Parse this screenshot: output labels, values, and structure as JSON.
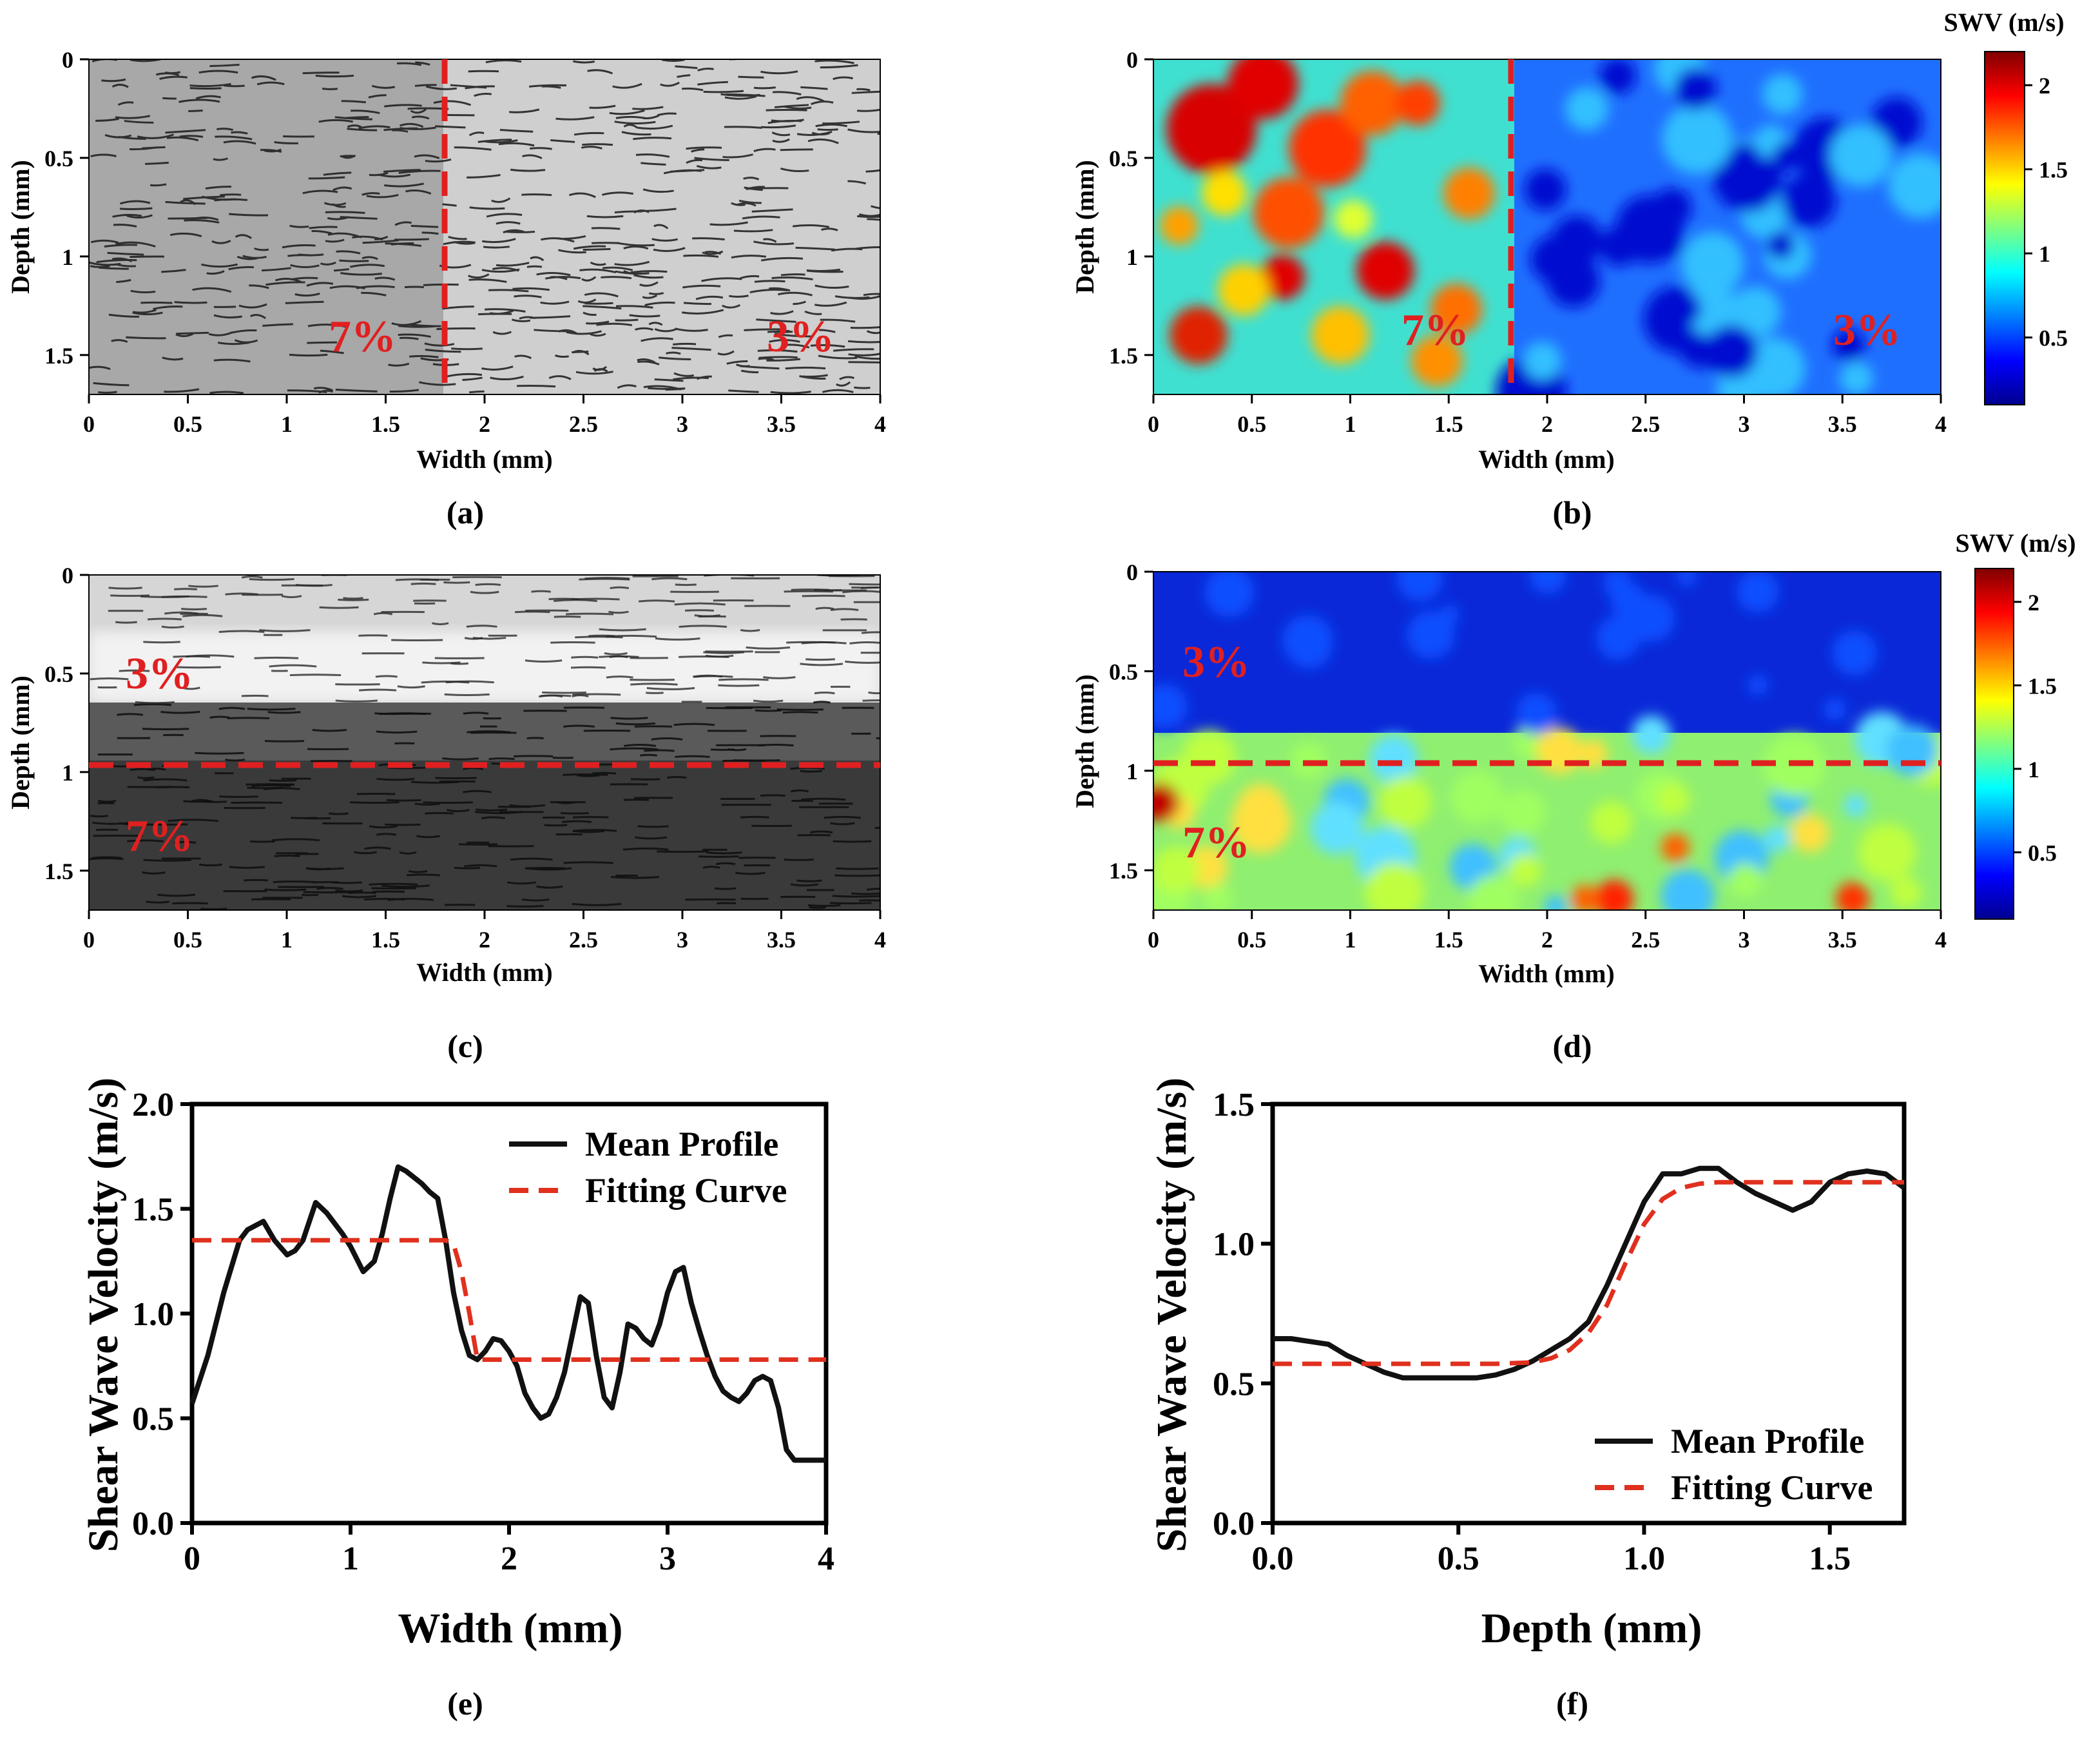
{
  "colors": {
    "dashed_red": "#e02020",
    "profile_black": "#111111",
    "fit_red": "#e0301e"
  },
  "panels": {
    "a": {
      "caption": "(a)",
      "xlabel": "Width (mm)",
      "ylabel": "Depth (mm)",
      "xticks": [
        "0",
        "0.5",
        "1",
        "1.5",
        "2",
        "2.5",
        "3",
        "3.5",
        "4"
      ],
      "yticks": [
        "0",
        "0.5",
        "1",
        "1.5"
      ],
      "xlim": [
        0,
        4
      ],
      "ylim": [
        0,
        1.7
      ],
      "labels": [
        "7%",
        "3%"
      ],
      "boundary_width_mm": 1.8
    },
    "b": {
      "caption": "(b)",
      "xlabel": "Width (mm)",
      "ylabel": "Depth (mm)",
      "xticks": [
        "0",
        "0.5",
        "1",
        "1.5",
        "2",
        "2.5",
        "3",
        "3.5",
        "4"
      ],
      "yticks": [
        "0",
        "0.5",
        "1",
        "1.5"
      ],
      "xlim": [
        0,
        4
      ],
      "ylim": [
        0,
        1.7
      ],
      "labels": [
        "7%",
        "3%"
      ],
      "boundary_width_mm": 1.8,
      "colorbar_title": "SWV (m/s)",
      "colorbar_ticks": [
        "2",
        "1.5",
        "1",
        "0.5"
      ],
      "colorbar_range": [
        0.1,
        2.2
      ]
    },
    "c": {
      "caption": "(c)",
      "xlabel": "Width (mm)",
      "ylabel": "Depth (mm)",
      "xticks": [
        "0",
        "0.5",
        "1",
        "1.5",
        "2",
        "2.5",
        "3",
        "3.5",
        "4"
      ],
      "yticks": [
        "0",
        "0.5",
        "1",
        "1.5"
      ],
      "xlim": [
        0,
        4
      ],
      "ylim": [
        0,
        1.7
      ],
      "labels": [
        "3%",
        "7%"
      ],
      "boundary_depth_mm": 0.95
    },
    "d": {
      "caption": "(d)",
      "xlabel": "Width (mm)",
      "ylabel": "Depth (mm)",
      "xticks": [
        "0",
        "0.5",
        "1",
        "1.5",
        "2",
        "2.5",
        "3",
        "3.5",
        "4"
      ],
      "yticks": [
        "0",
        "0.5",
        "1",
        "1.5"
      ],
      "xlim": [
        0,
        4
      ],
      "ylim": [
        0,
        1.7
      ],
      "labels": [
        "3%",
        "7%"
      ],
      "boundary_depth_mm": 0.95,
      "colorbar_title": "SWV (m/s)",
      "colorbar_ticks": [
        "2",
        "1.5",
        "1",
        "0.5"
      ],
      "colorbar_range": [
        0.1,
        2.2
      ]
    }
  },
  "chart_data": [
    {
      "type": "line",
      "caption": "(e)",
      "xlabel": "Width (mm)",
      "ylabel": "Shear Wave Velocity (m/s)",
      "xlim": [
        0,
        4
      ],
      "ylim": [
        0,
        2.0
      ],
      "xticks": [
        "0",
        "1",
        "2",
        "3",
        "4"
      ],
      "yticks": [
        "0.0",
        "0.5",
        "1.0",
        "1.5",
        "2.0"
      ],
      "series": [
        {
          "name": "Mean Profile",
          "style": "solid",
          "x": [
            0,
            0.1,
            0.2,
            0.3,
            0.35,
            0.45,
            0.52,
            0.6,
            0.65,
            0.7,
            0.78,
            0.85,
            0.95,
            1.0,
            1.08,
            1.15,
            1.2,
            1.25,
            1.3,
            1.35,
            1.4,
            1.45,
            1.5,
            1.55,
            1.6,
            1.65,
            1.7,
            1.75,
            1.8,
            1.85,
            1.9,
            1.95,
            2.0,
            2.05,
            2.1,
            2.15,
            2.2,
            2.25,
            2.3,
            2.35,
            2.4,
            2.45,
            2.5,
            2.55,
            2.6,
            2.65,
            2.7,
            2.75,
            2.8,
            2.85,
            2.9,
            2.95,
            3.0,
            3.05,
            3.1,
            3.15,
            3.2,
            3.25,
            3.3,
            3.35,
            3.4,
            3.45,
            3.5,
            3.55,
            3.6,
            3.65,
            3.7,
            3.75,
            3.8,
            3.85,
            3.9,
            3.95,
            4.0
          ],
          "y": [
            0.57,
            0.8,
            1.1,
            1.35,
            1.4,
            1.44,
            1.35,
            1.28,
            1.3,
            1.35,
            1.53,
            1.48,
            1.38,
            1.32,
            1.2,
            1.25,
            1.38,
            1.55,
            1.7,
            1.68,
            1.65,
            1.62,
            1.58,
            1.55,
            1.35,
            1.1,
            0.92,
            0.8,
            0.78,
            0.82,
            0.88,
            0.87,
            0.82,
            0.75,
            0.62,
            0.55,
            0.5,
            0.52,
            0.6,
            0.72,
            0.9,
            1.08,
            1.05,
            0.8,
            0.6,
            0.55,
            0.72,
            0.95,
            0.93,
            0.88,
            0.85,
            0.95,
            1.1,
            1.2,
            1.22,
            1.05,
            0.92,
            0.8,
            0.7,
            0.63,
            0.6,
            0.58,
            0.62,
            0.68,
            0.7,
            0.68,
            0.55,
            0.35,
            0.3,
            0.3,
            0.3,
            0.3,
            0.3
          ]
        },
        {
          "name": "Fitting Curve",
          "style": "dashed",
          "x": [
            0,
            1.6,
            1.65,
            1.7,
            1.75,
            1.8,
            4.0
          ],
          "y": [
            1.35,
            1.35,
            1.33,
            1.2,
            1.0,
            0.78,
            0.78
          ]
        }
      ],
      "legend": [
        "Mean Profile",
        "Fitting Curve"
      ],
      "legend_position": "top-right"
    },
    {
      "type": "line",
      "caption": "(f)",
      "xlabel": "Depth (mm)",
      "ylabel": "Shear Wave Velocity (m/s)",
      "xlim": [
        0,
        1.7
      ],
      "ylim": [
        0,
        1.5
      ],
      "xticks": [
        "0.0",
        "0.5",
        "1.0",
        "1.5"
      ],
      "yticks": [
        "0.0",
        "0.5",
        "1.0",
        "1.5"
      ],
      "series": [
        {
          "name": "Mean Profile",
          "style": "solid",
          "x": [
            0,
            0.05,
            0.1,
            0.15,
            0.2,
            0.25,
            0.3,
            0.35,
            0.4,
            0.45,
            0.5,
            0.55,
            0.6,
            0.65,
            0.7,
            0.75,
            0.8,
            0.85,
            0.9,
            0.95,
            1.0,
            1.05,
            1.1,
            1.15,
            1.2,
            1.25,
            1.3,
            1.35,
            1.4,
            1.45,
            1.5,
            1.55,
            1.6,
            1.65,
            1.7
          ],
          "y": [
            0.66,
            0.66,
            0.65,
            0.64,
            0.6,
            0.57,
            0.54,
            0.52,
            0.52,
            0.52,
            0.52,
            0.52,
            0.53,
            0.55,
            0.58,
            0.62,
            0.66,
            0.72,
            0.85,
            1.0,
            1.15,
            1.25,
            1.25,
            1.27,
            1.27,
            1.22,
            1.18,
            1.15,
            1.12,
            1.15,
            1.22,
            1.25,
            1.26,
            1.25,
            1.2
          ]
        },
        {
          "name": "Fitting Curve",
          "style": "dashed",
          "x": [
            0,
            0.3,
            0.6,
            0.7,
            0.75,
            0.8,
            0.85,
            0.9,
            0.95,
            1.0,
            1.05,
            1.1,
            1.15,
            1.2,
            1.4,
            1.7
          ],
          "y": [
            0.57,
            0.57,
            0.57,
            0.575,
            0.59,
            0.62,
            0.68,
            0.78,
            0.93,
            1.07,
            1.16,
            1.2,
            1.215,
            1.22,
            1.22,
            1.22
          ]
        }
      ],
      "legend": [
        "Mean Profile",
        "Fitting Curve"
      ],
      "legend_position": "bottom-right"
    }
  ]
}
